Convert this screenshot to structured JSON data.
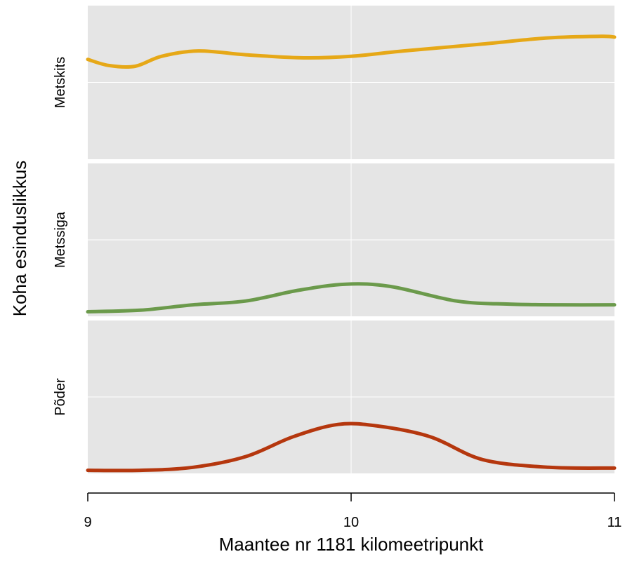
{
  "chart_data": {
    "type": "line",
    "title": "",
    "xlabel": "Maantee nr 1181 kilomeetripunkt",
    "ylabel": "Koha esinduslikkus",
    "xlim": [
      9,
      11
    ],
    "x_ticks": [
      "9",
      "10",
      "11"
    ],
    "grid": true,
    "panels": [
      {
        "name": "Metskits",
        "color": "#E6A817",
        "ylim": [
          0,
          1
        ],
        "points": [
          [
            9.0,
            0.65
          ],
          [
            9.08,
            0.61
          ],
          [
            9.18,
            0.605
          ],
          [
            9.28,
            0.67
          ],
          [
            9.42,
            0.705
          ],
          [
            9.6,
            0.68
          ],
          [
            9.82,
            0.66
          ],
          [
            10.0,
            0.67
          ],
          [
            10.2,
            0.705
          ],
          [
            10.5,
            0.75
          ],
          [
            10.75,
            0.79
          ],
          [
            10.95,
            0.8
          ],
          [
            11.0,
            0.795
          ]
        ]
      },
      {
        "name": "Metssiga",
        "color": "#6B9A4B",
        "ylim": [
          0,
          1
        ],
        "points": [
          [
            9.0,
            0.03
          ],
          [
            9.2,
            0.04
          ],
          [
            9.4,
            0.075
          ],
          [
            9.6,
            0.1
          ],
          [
            9.8,
            0.17
          ],
          [
            9.98,
            0.21
          ],
          [
            10.15,
            0.195
          ],
          [
            10.4,
            0.1
          ],
          [
            10.6,
            0.08
          ],
          [
            10.8,
            0.075
          ],
          [
            11.0,
            0.075
          ]
        ]
      },
      {
        "name": "Põder",
        "color": "#B5370E",
        "ylim": [
          0,
          1
        ],
        "points": [
          [
            9.0,
            0.02
          ],
          [
            9.2,
            0.02
          ],
          [
            9.4,
            0.04
          ],
          [
            9.6,
            0.11
          ],
          [
            9.78,
            0.24
          ],
          [
            9.95,
            0.32
          ],
          [
            10.1,
            0.31
          ],
          [
            10.3,
            0.24
          ],
          [
            10.5,
            0.09
          ],
          [
            10.75,
            0.04
          ],
          [
            11.0,
            0.035
          ]
        ]
      }
    ]
  }
}
